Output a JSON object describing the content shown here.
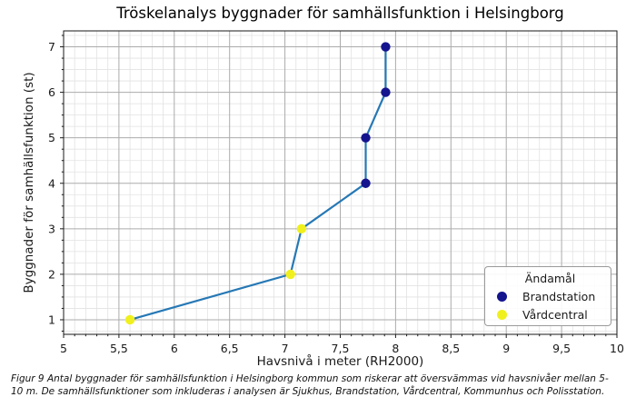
{
  "figure": {
    "caption": "Figur 9 Antal byggnader för samhällsfunktion i Helsingborg kommun som riskerar att översvämmas vid havsnivåer mellan 5-10 m. De samhällsfunktioner som inkluderas i analysen är Sjukhus, Brandstation, Vårdcentral, Kommunhus och Polisstation."
  },
  "chart_data": {
    "type": "line",
    "title": "Tröskelanalys byggnader för samhällsfunktion i Helsingborg",
    "xlabel": "Havsnivå i meter (RH2000)",
    "ylabel": "Byggnader för samhällsfunktion (st)",
    "xlim": [
      5,
      10
    ],
    "ylim": [
      0.68,
      7.35
    ],
    "x_tick_values": [
      5,
      5.5,
      6,
      6.5,
      7,
      7.5,
      8,
      8.5,
      9,
      9.5,
      10
    ],
    "x_tick_labels": [
      "5",
      "5,5",
      "6",
      "6,5",
      "7",
      "7,5",
      "8",
      "8,5",
      "9",
      "9,5",
      "10"
    ],
    "y_tick_values": [
      1,
      2,
      3,
      4,
      5,
      6,
      7
    ],
    "y_tick_labels": [
      "1",
      "2",
      "3",
      "4",
      "5",
      "6",
      "7"
    ],
    "x_minor_step": 0.1,
    "y_minor_step": 0.25,
    "grid": {
      "major_color": "#ababab",
      "minor_color": "#e2e2e2"
    },
    "line_color": "#2678b5",
    "marker_radius": 5.2,
    "points": [
      {
        "x": 5.6,
        "y": 1,
        "category": "Vårdcentral"
      },
      {
        "x": 7.05,
        "y": 2,
        "category": "Vårdcentral"
      },
      {
        "x": 7.15,
        "y": 3,
        "category": "Vårdcentral"
      },
      {
        "x": 7.73,
        "y": 4,
        "category": "Brandstation"
      },
      {
        "x": 7.73,
        "y": 5,
        "category": "Brandstation"
      },
      {
        "x": 7.91,
        "y": 6,
        "category": "Brandstation"
      },
      {
        "x": 7.91,
        "y": 7,
        "category": "Brandstation"
      }
    ],
    "legend": {
      "title": "Ändamål",
      "position": "lower-right",
      "entries": [
        {
          "label": "Brandstation",
          "color": "#14148f"
        },
        {
          "label": "Vårdcentral",
          "color": "#f0f01e"
        }
      ]
    }
  }
}
